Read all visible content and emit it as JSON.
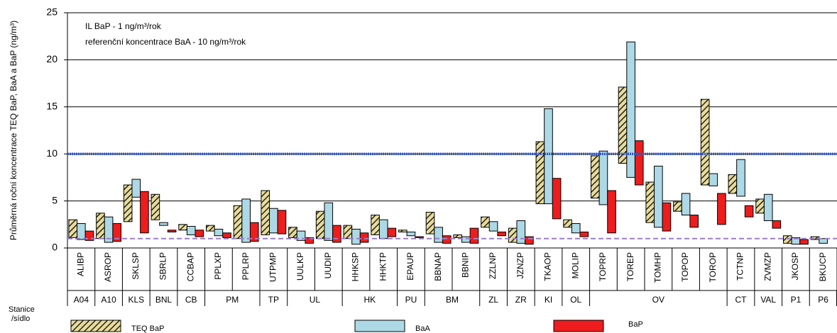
{
  "chart_data": {
    "type": "floating-bar",
    "y_axis_label": "Průměrná roční koncentrace TEQ BaP, BaA a BaP (ng/m³)",
    "annotations": [
      "IL BaP - 1  ng/m³/rok",
      "referenční koncentrace BaA - 10 ng/m³/rok"
    ],
    "row_label": [
      "Stanice",
      "/sídlo"
    ],
    "categories": [
      "ALIBP",
      "ASROP",
      "SKLSP",
      "SBRLP",
      "CCBAP",
      "PPLXP",
      "PPLRP",
      "UTPMP",
      "UULKP",
      "UUDIP",
      "HHKSP",
      "HHKTP",
      "EPAUP",
      "BBNAP",
      "BBNIP",
      "ZZLNP",
      "JZNZP",
      "TKAOP",
      "MOLIP",
      "TOPRP",
      "TOREP",
      "TOMHP",
      "TOPOP",
      "TOROP",
      "TCTNP",
      "ZVMZP",
      "JKOSP",
      "BKUCP"
    ],
    "groups": [
      {
        "label": "A04",
        "count": 1
      },
      {
        "label": "A10",
        "count": 1
      },
      {
        "label": "KLS",
        "count": 1
      },
      {
        "label": "BNL",
        "count": 1
      },
      {
        "label": "CB",
        "count": 1
      },
      {
        "label": "PM",
        "count": 2
      },
      {
        "label": "TP",
        "count": 1
      },
      {
        "label": "UL",
        "count": 2
      },
      {
        "label": "HK",
        "count": 2
      },
      {
        "label": "PU",
        "count": 1
      },
      {
        "label": "BM",
        "count": 2
      },
      {
        "label": "ZL",
        "count": 1
      },
      {
        "label": "ZR",
        "count": 1
      },
      {
        "label": "KI",
        "count": 1
      },
      {
        "label": "OL",
        "count": 1
      },
      {
        "label": "OV",
        "count": 5
      },
      {
        "label": "CT",
        "count": 1
      },
      {
        "label": "VAL",
        "count": 1
      },
      {
        "label": "P1",
        "count": 1
      },
      {
        "label": "P6",
        "count": 1
      }
    ],
    "series": [
      {
        "name": "TEQ BaP",
        "color": "#e8dc9a",
        "pattern": "hatch",
        "values": [
          [
            1.1,
            3.0
          ],
          [
            1.0,
            3.7
          ],
          [
            2.8,
            6.7
          ],
          [
            3.0,
            5.7
          ],
          [
            1.9,
            2.5
          ],
          [
            1.8,
            2.4
          ],
          [
            1.0,
            4.5
          ],
          [
            1.4,
            6.1
          ],
          [
            1.1,
            2.2
          ],
          [
            1.0,
            3.9
          ],
          [
            1.0,
            2.4
          ],
          [
            1.4,
            3.5
          ],
          [
            1.7,
            1.9
          ],
          [
            1.5,
            3.8
          ],
          [
            1.1,
            1.4
          ],
          [
            2.2,
            3.3
          ],
          [
            0.6,
            2.1
          ],
          [
            4.7,
            11.3
          ],
          [
            2.2,
            3.0
          ],
          [
            5.3,
            9.8
          ],
          [
            9.0,
            17.1
          ],
          [
            2.7,
            7.0
          ],
          [
            3.9,
            4.9
          ],
          [
            6.7,
            15.8
          ],
          [
            5.8,
            7.8
          ],
          [
            3.7,
            5.2
          ],
          [
            0.5,
            1.3
          ],
          [
            0.9,
            1.2
          ]
        ]
      },
      {
        "name": "BaA",
        "color": "#add8e6",
        "values": [
          [
            0.9,
            2.6
          ],
          [
            0.6,
            3.3
          ],
          [
            5.4,
            7.3
          ],
          [
            2.4,
            2.7
          ],
          [
            1.4,
            2.3
          ],
          [
            1.3,
            2.0
          ],
          [
            0.6,
            5.2
          ],
          [
            1.6,
            4.2
          ],
          [
            0.8,
            1.8
          ],
          [
            0.8,
            4.8
          ],
          [
            0.4,
            2.0
          ],
          [
            1.0,
            3.0
          ],
          [
            1.3,
            1.7
          ],
          [
            0.6,
            2.2
          ],
          [
            0.6,
            1.2
          ],
          [
            1.8,
            2.8
          ],
          [
            0.5,
            2.9
          ],
          [
            4.7,
            14.8
          ],
          [
            1.6,
            2.6
          ],
          [
            4.6,
            10.3
          ],
          [
            7.5,
            21.9
          ],
          [
            2.2,
            8.7
          ],
          [
            3.5,
            5.8
          ],
          [
            6.6,
            7.9
          ],
          [
            5.5,
            9.4
          ],
          [
            2.9,
            5.7
          ],
          [
            0.4,
            1.1
          ],
          [
            0.5,
            1.0
          ]
        ]
      },
      {
        "name": "BaP",
        "color": "#ee1c1c",
        "values": [
          [
            0.8,
            1.8
          ],
          [
            0.7,
            2.6
          ],
          [
            1.6,
            6.0
          ],
          [
            1.7,
            1.9
          ],
          [
            1.2,
            1.9
          ],
          [
            1.1,
            1.6
          ],
          [
            0.7,
            2.7
          ],
          [
            1.5,
            4.0
          ],
          [
            0.5,
            1.1
          ],
          [
            0.6,
            2.4
          ],
          [
            0.6,
            1.6
          ],
          [
            1.2,
            2.1
          ],
          [
            1.1,
            1.2
          ],
          [
            0.5,
            1.3
          ],
          [
            0.5,
            2.1
          ],
          [
            1.3,
            1.7
          ],
          [
            0.4,
            1.2
          ],
          [
            3.1,
            7.4
          ],
          [
            1.2,
            1.7
          ],
          [
            1.6,
            6.1
          ],
          [
            6.7,
            11.4
          ],
          [
            1.8,
            4.8
          ],
          [
            2.2,
            3.5
          ],
          [
            2.5,
            5.8
          ],
          [
            3.3,
            4.5
          ],
          [
            2.1,
            2.9
          ],
          [
            0.4,
            0.9
          ],
          null
        ]
      }
    ],
    "reference_lines": [
      {
        "value": 10,
        "color": "#3355bb"
      },
      {
        "value": 1,
        "color": "#9a7ec8"
      }
    ],
    "ylim": [
      0,
      25
    ],
    "yticks": [
      0,
      5,
      10,
      15,
      20,
      25
    ],
    "grid": true
  }
}
